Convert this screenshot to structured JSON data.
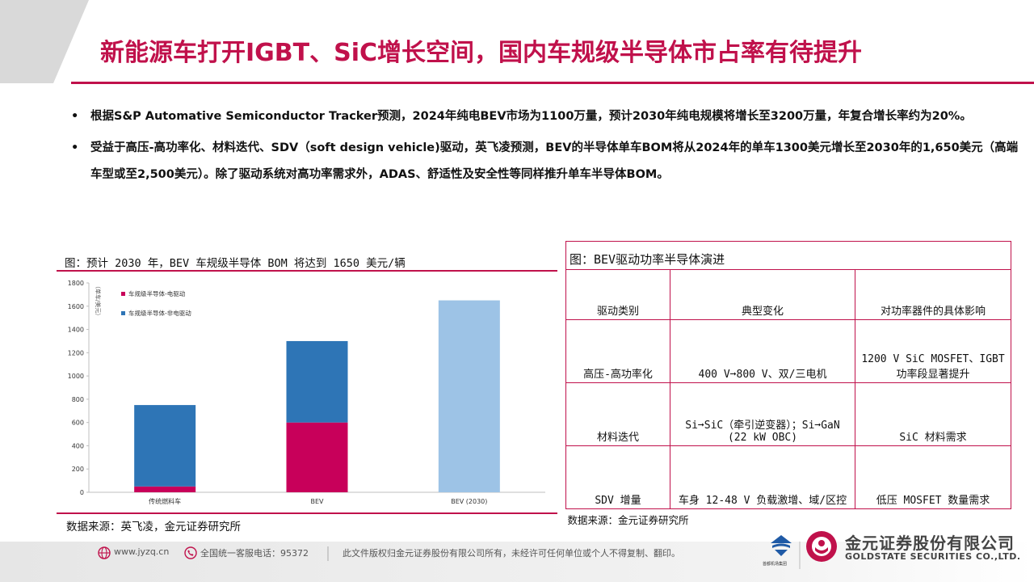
{
  "header": {
    "title": "新能源车打开IGBT、SiC增长空间，国内车规级半导体市占率有待提升"
  },
  "bullets": [
    {
      "text": "根据S&P Automative Semiconductor Tracker预测，2024年纯电BEV市场为1100万量，预计2030年纯电规模将增长至3200万量，年复合增长率约为20%。"
    },
    {
      "text": "受益于高压-高功率化、材料迭代、SDV（soft design vehicle)驱动，英飞凌预测，BEV的半导体单车BOM将从2024年的单车1300美元增长至2030年的1,650美元（高端车型或至2,500美元）。除了驱动系统对高功率需求外，ADAS、舒适性及安全性等同样推升单车半导体BOM。"
    }
  ],
  "chart_section": {
    "caption": "图：预计 2030 年，BEV 车规级半导体 BOM 将达到 1650 美元/辆",
    "source": "数据来源：英飞凌，金元证券研究所"
  },
  "chart_data": {
    "type": "bar",
    "stacked": true,
    "categories": [
      "传统燃料车",
      "BEV",
      "BEV (2030)"
    ],
    "series": [
      {
        "name": "车规级半导体-电驱动",
        "values": [
          50,
          600,
          0
        ],
        "color": "#c8005a"
      },
      {
        "name": "车规级半导体-非电驱动",
        "values": [
          700,
          700,
          0
        ],
        "color": "#2e75b6"
      },
      {
        "name": "",
        "values": [
          0,
          0,
          1650
        ],
        "color": "#9dc3e6"
      }
    ],
    "ylabel": "（单车/美元）",
    "ylim": [
      0,
      1800
    ],
    "yticks": [
      0,
      200,
      400,
      600,
      800,
      1000,
      1200,
      1400,
      1600,
      1800
    ],
    "legend_position": "top-left",
    "grid": false
  },
  "table": {
    "caption": "图：BEV驱动功率半导体演进",
    "headers": [
      "驱动类别",
      "典型变化",
      "对功率器件的具体影响"
    ],
    "rows": [
      [
        "高压-高功率化",
        "400 V➞800 V、双/三电机",
        "1200 V SiC MOSFET、IGBT 功率段显著提升"
      ],
      [
        "材料迭代",
        "Si➞SiC（牵引逆变器）；Si➞GaN (22 kW OBC)",
        "SiC 材料需求"
      ],
      [
        "SDV 增量",
        "车身 12-48 V 负载激增、域/区控",
        "低压 MOSFET 数量需求"
      ]
    ],
    "source": "数据来源：金元证券研究所"
  },
  "footer": {
    "website": "www.jyzq.cn",
    "hotline": "全国统一客服电话：95372",
    "copyright": "此文件版权归金元证券股份有限公司所有，未经许可任何单位或个人不得复制、翻印。",
    "company_cn": "金元证券股份有限公司",
    "company_en": "GOLDSTATE SECURITIES  CO.,LTD.",
    "sub_logo": "首都机场集团"
  },
  "colors": {
    "accent": "#c0114b",
    "series_electric": "#c8005a",
    "series_nonelectric": "#2e75b6",
    "series_2030": "#9dc3e6"
  },
  "icons": [
    "globe-icon",
    "phone-icon",
    "company-logo-icon",
    "airport-group-logo-icon"
  ]
}
